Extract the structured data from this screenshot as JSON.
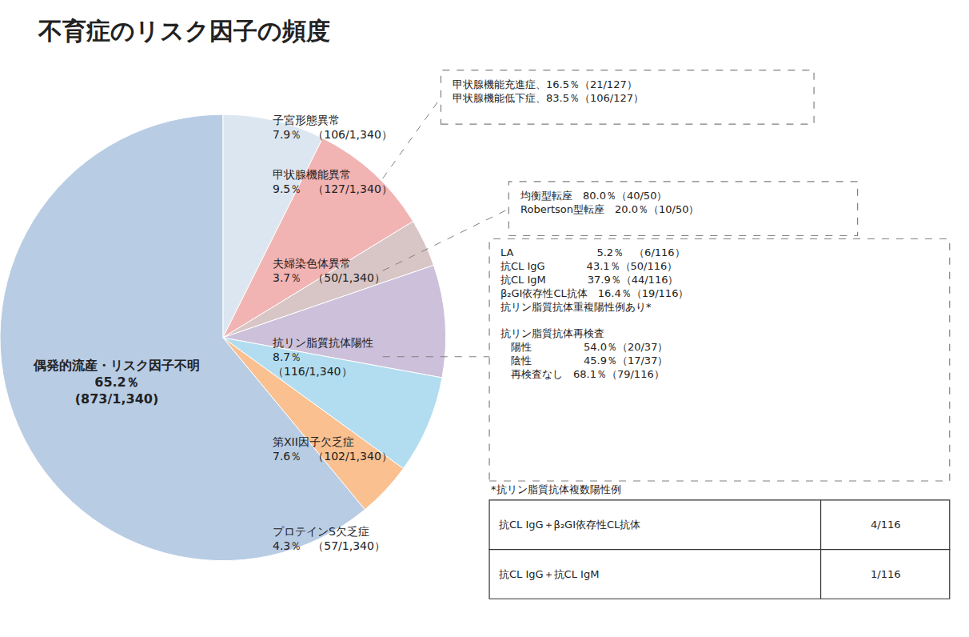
{
  "chart_data": {
    "type": "pie",
    "title": "不育症のリスク因子の頻度",
    "categories": [
      "子宮形態異常\n7.9％　（106/1,340）",
      "甲状腺機能異常\n9.5％　（127/1,340）",
      "夫婦染色体異常\n3.7％　（50/1,340）",
      "抗リン脂質抗体陽性\n8.7％\n（116/1,340）",
      "第XII因子欠乏症\n7.6％　（102/1,340）",
      "プロテインS欠乏症\n4.3％　（57/1,340）",
      "偶発的流産・リスク因子不明\n65.2％\n(873/1,340)"
    ],
    "values": [
      7.9,
      9.5,
      3.7,
      8.7,
      7.6,
      4.3,
      65.2
    ],
    "colors": [
      "#dce6f1",
      "#f2b3b3",
      "#d8c5c5",
      "#ccc0da",
      "#b2ddf0",
      "#fac090",
      "#b8cce4"
    ],
    "annotations": [
      "甲状腺機能充進症、16.5％（21/127）\n甲状腺機能低下症、83.5％（106/127）",
      "均衡型転座　80.0％（40/50）\nRobertson型転座　20.0％（10/50）",
      "LA　　　　　　　　5.2％　（6/116）\n抗CL IgG　　　　43.1％（50/116）\n抗CL IgM　　　　37.9％（44/116）\nβ₂GI依存性CL抗体　16.4％（19/116）\n抗リン脂質抗体重複陽性例あり*\n\n抗リン脂質抗体再検査\n　陽性　　　　　54.0％（20/37）\n　陰性　　　　　45.9％（17/37）\n　再検査なし　68.1％（79/116）"
    ],
    "table": {
      "title": "*抗リン脂質抗体複数陽性例",
      "rows": [
        [
          "抗CL IgG＋β₂GI依存性CL抗体",
          "4/116"
        ],
        [
          "抗CL IgG＋抗CL IgM",
          "1/116"
        ]
      ]
    }
  }
}
